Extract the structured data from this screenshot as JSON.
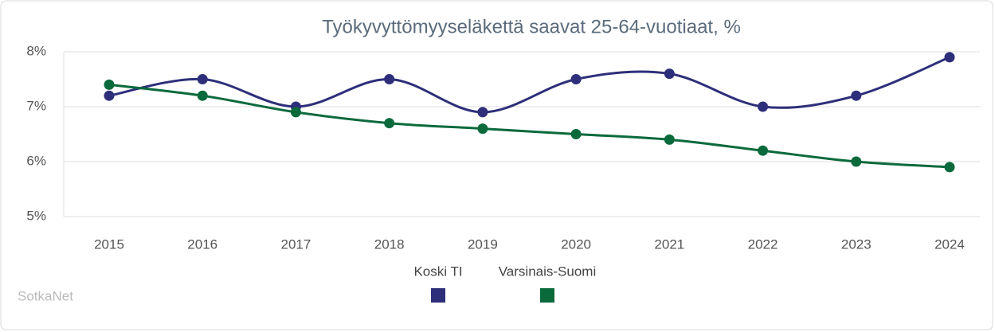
{
  "chart_data": {
    "type": "line",
    "title": "Työkyvyttömyyseläkettä saavat 25-64-vuotiaat, %",
    "credit": "SotkaNet",
    "categories": [
      "2015",
      "2016",
      "2017",
      "2018",
      "2019",
      "2020",
      "2021",
      "2022",
      "2023",
      "2024"
    ],
    "series": [
      {
        "name": "Koski TI",
        "color": "#2e2f7a",
        "values": [
          7.2,
          7.5,
          7.0,
          7.5,
          6.9,
          7.5,
          7.6,
          7.0,
          7.2,
          7.9
        ]
      },
      {
        "name": "Varsinais-Suomi",
        "color": "#0b6a3c",
        "values": [
          7.4,
          7.2,
          6.9,
          6.7,
          6.6,
          6.5,
          6.4,
          6.2,
          6.0,
          5.9
        ]
      }
    ],
    "ylim": [
      5,
      8
    ],
    "yticks": [
      {
        "value": 5,
        "label": "5%"
      },
      {
        "value": 6,
        "label": "6%"
      },
      {
        "value": 7,
        "label": "7%"
      },
      {
        "value": 8,
        "label": "8%"
      }
    ],
    "grid": true,
    "smooth": true
  }
}
